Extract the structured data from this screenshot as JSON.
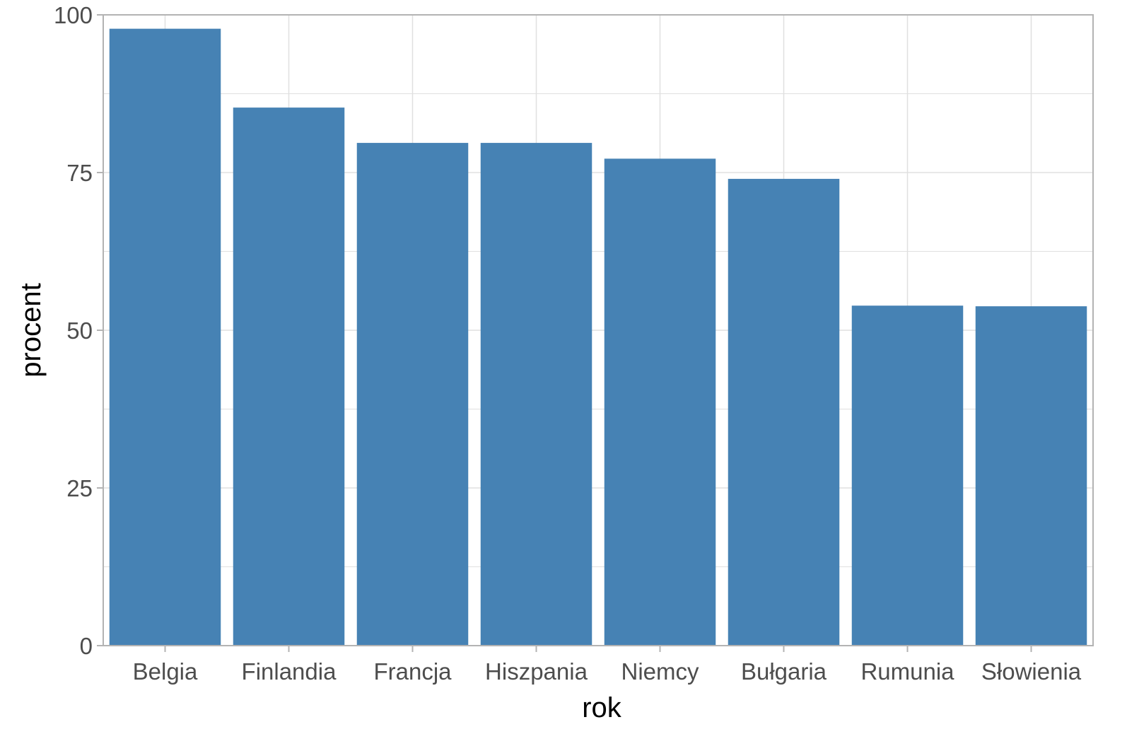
{
  "chart_data": {
    "type": "bar",
    "title": "",
    "xlabel": "rok",
    "ylabel": "procent",
    "categories": [
      "Belgia",
      "Finlandia",
      "Francja",
      "Hiszpania",
      "Niemcy",
      "Bułgaria",
      "Rumunia",
      "Słowienia"
    ],
    "values": [
      97.8,
      85.3,
      79.7,
      79.7,
      77.2,
      74.0,
      53.9,
      53.8
    ],
    "ylim": [
      0,
      100
    ],
    "yticks": [
      0,
      25,
      50,
      75,
      100
    ],
    "grid": true,
    "legend": "none",
    "colors": {
      "bar": "#4682b4",
      "grid": "#e0e0e0",
      "panel_border": "#b3b3b3",
      "tick_text": "#4d4d4d"
    }
  }
}
